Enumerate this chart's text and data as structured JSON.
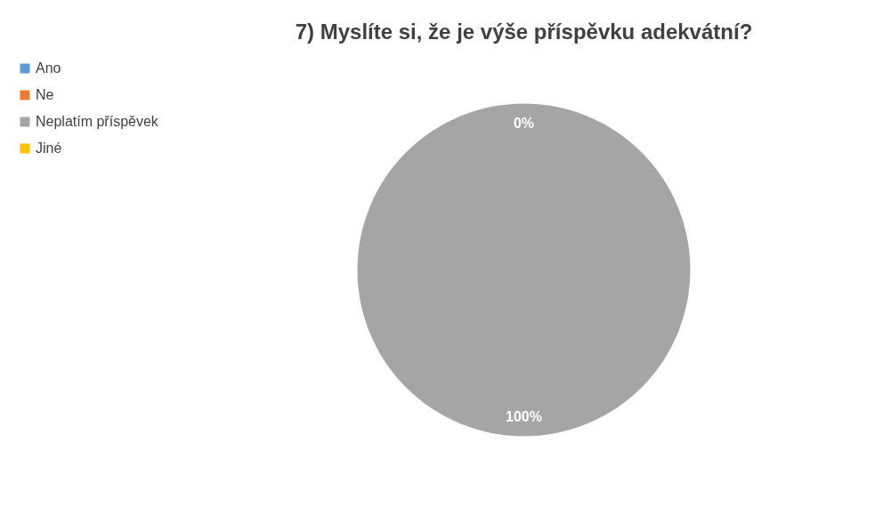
{
  "chart_data": {
    "type": "pie",
    "title": "7) Myslíte si, že je výše příspěvku adekvátní?",
    "categories": [
      "Ano",
      "Ne",
      "Neplatím příspěvek",
      "Jiné"
    ],
    "values": [
      0,
      0,
      100,
      0
    ],
    "colors": [
      "#5b9bd5",
      "#ed7d31",
      "#a5a5a5",
      "#ffc000"
    ],
    "value_labels": [
      "0%",
      null,
      "100%",
      null
    ],
    "legend": "left"
  }
}
